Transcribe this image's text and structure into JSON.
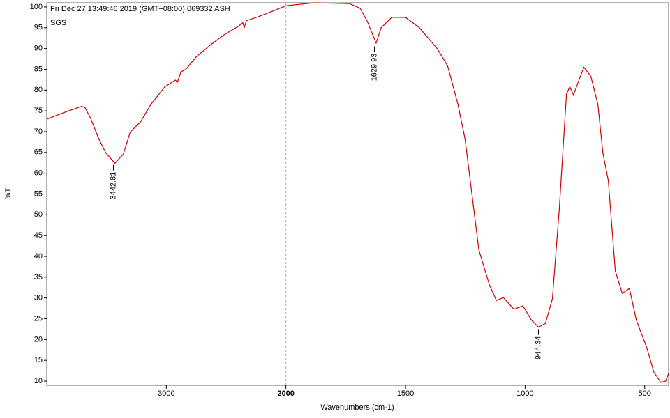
{
  "chart_data": {
    "type": "line",
    "header": "Fri Dec 27 13:49:46 2019 (GMT+08:00)  069332  ASH",
    "subtitle": "SGS",
    "xlabel": "Wavenumbers (cm-1)",
    "ylabel": "%T",
    "color": "#cc0000",
    "x": [
      4000,
      3855,
      3709,
      3680,
      3633,
      3564,
      3506,
      3430,
      3360,
      3302,
      3215,
      3128,
      3012,
      2924,
      2907,
      2878,
      2837,
      2750,
      2634,
      2517,
      2401,
      2360,
      2349,
      2331,
      2227,
      2110,
      2000,
      1880,
      1734,
      1690,
      1661,
      1623,
      1602,
      1558,
      1500,
      1442,
      1368,
      1324,
      1281,
      1251,
      1222,
      1193,
      1149,
      1120,
      1091,
      1047,
      1009,
      974,
      944,
      915,
      886,
      857,
      827,
      813,
      798,
      769,
      754,
      725,
      696,
      675,
      652,
      623,
      594,
      564,
      535,
      491,
      462,
      433,
      412,
      400
    ],
    "values": [
      73,
      74.6,
      76.1,
      75.8,
      73.2,
      68.2,
      64.9,
      62.4,
      64.6,
      69.9,
      72.4,
      76.6,
      80.8,
      82.4,
      81.9,
      84.4,
      85,
      88,
      90.8,
      93.3,
      95.3,
      96.2,
      95,
      96.7,
      97.7,
      99,
      100.3,
      101,
      100.8,
      99.7,
      96.7,
      91.3,
      95,
      97.5,
      97.5,
      95,
      90,
      85.8,
      76.6,
      68.2,
      54.8,
      41.5,
      33.1,
      29.4,
      30.1,
      27.3,
      28.1,
      24.7,
      23,
      23.9,
      29.8,
      51.5,
      79.1,
      80.8,
      78.8,
      83.3,
      85.5,
      83.3,
      76.6,
      64.9,
      58.2,
      36.5,
      31.1,
      32.3,
      24.7,
      18,
      12.2,
      9.7,
      10,
      11.9
    ],
    "xlim": [
      4000,
      400
    ],
    "x_break": 2000,
    "x_break_expand": 2,
    "xticks": [
      3000,
      2000,
      1500,
      1000,
      500
    ],
    "ylim": [
      9,
      101
    ],
    "yticks": [
      10,
      15,
      20,
      25,
      30,
      35,
      40,
      45,
      50,
      55,
      60,
      65,
      70,
      75,
      80,
      85,
      90,
      95,
      100
    ],
    "annotations": [
      {
        "label": "3442.81",
        "x": 3442.81,
        "y": 62
      },
      {
        "label": "1629.93",
        "x": 1629.93,
        "y": 90.5
      },
      {
        "label": "944.34",
        "x": 944.34,
        "y": 22.5
      }
    ]
  }
}
